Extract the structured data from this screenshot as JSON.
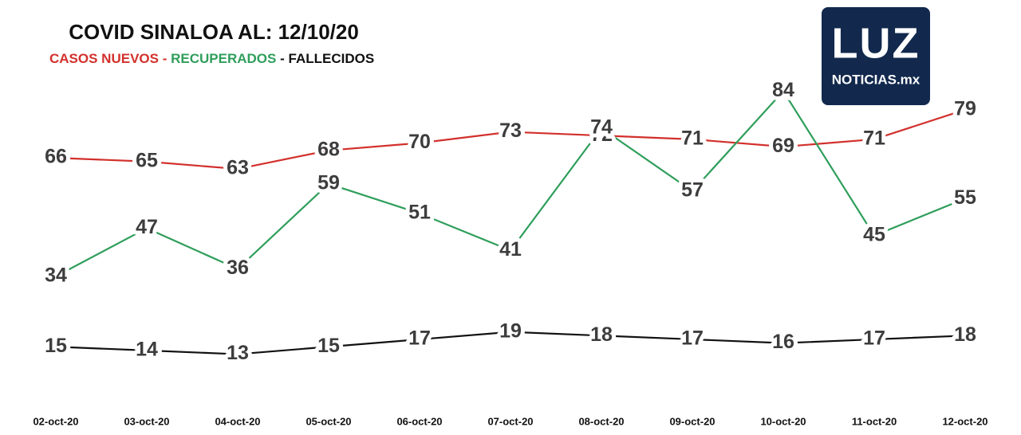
{
  "chart_data": {
    "type": "line",
    "title": "COVID SINALOA AL: 12/10/20",
    "legend_separator": "-",
    "logo": {
      "name": "LUZ",
      "tagline": "NOTICIAS.mx"
    },
    "categories": [
      "02-oct-20",
      "03-oct-20",
      "04-oct-20",
      "05-oct-20",
      "06-oct-20",
      "07-oct-20",
      "08-oct-20",
      "09-oct-20",
      "10-oct-20",
      "11-oct-20",
      "12-oct-20"
    ],
    "series": [
      {
        "name": "CASOS NUEVOS",
        "color": "#d2302c",
        "values": [
          66,
          65,
          63,
          68,
          70,
          73,
          72,
          71,
          69,
          71,
          79
        ]
      },
      {
        "name": "RECUPERADOS",
        "color": "#2f9e5b",
        "values": [
          34,
          47,
          36,
          59,
          51,
          41,
          74,
          57,
          84,
          45,
          55
        ]
      },
      {
        "name": "FALLECIDOS",
        "color": "#111111",
        "values": [
          15,
          14,
          13,
          15,
          17,
          19,
          18,
          17,
          16,
          17,
          18
        ]
      }
    ]
  }
}
